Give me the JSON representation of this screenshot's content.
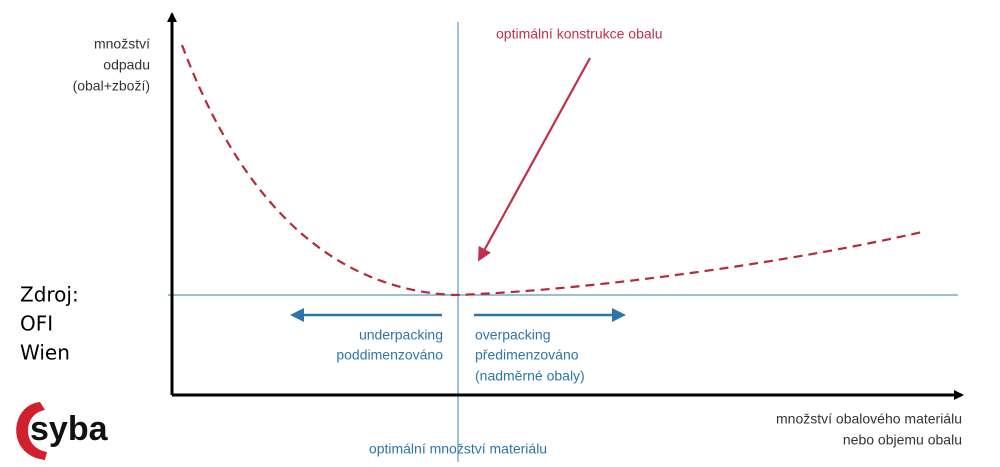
{
  "y_axis_label": [
    "množství",
    "odpadu",
    "(obal+zboží)"
  ],
  "x_axis_label": [
    "množství obalového materiálu",
    "nebo objemu obalu"
  ],
  "optimum_annotation": "optimální konstrukce obalu",
  "optimum_material": "optimální množství materiálu",
  "underpacking": [
    "underpacking",
    "poddimenzováno"
  ],
  "overpacking": [
    "overpacking",
    "předimenzováno",
    "(nadměrné obaly)"
  ],
  "source": [
    "Zdroj:",
    "OFI",
    "Wien"
  ],
  "logo": "syba"
}
